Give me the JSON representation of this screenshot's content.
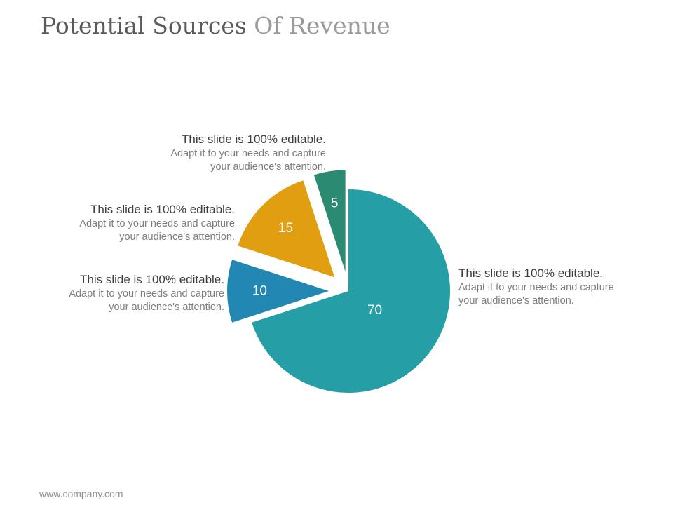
{
  "slide": {
    "title_main": "Potential Sources",
    "title_accent": "Of Revenue",
    "footer": "www.company.com"
  },
  "callouts": [
    {
      "heading": "This slide is 100% editable.",
      "line1": "Adapt it to your needs and capture",
      "line2": "your audience's attention."
    },
    {
      "heading": "This slide is 100% editable.",
      "line1": "Adapt it to your needs and capture",
      "line2": "your audience's attention."
    },
    {
      "heading": "This slide is 100% editable.",
      "line1": "Adapt it to your needs and capture",
      "line2": "your audience's attention."
    },
    {
      "heading": "This slide is 100% editable.",
      "line1": "Adapt it to your needs and capture",
      "line2": "your audience's attention."
    }
  ],
  "chart_data": {
    "type": "pie",
    "title": "",
    "slices": [
      {
        "label": "70",
        "value": 70,
        "color": "#259ea6"
      },
      {
        "label": "10",
        "value": 10,
        "color": "#2387b3"
      },
      {
        "label": "15",
        "value": 15,
        "color": "#e09e10"
      },
      {
        "label": "5",
        "value": 5,
        "color": "#2a8b72"
      }
    ],
    "start_angle_deg": 0,
    "exploded_slices": [
      "10",
      "15",
      "5"
    ]
  }
}
